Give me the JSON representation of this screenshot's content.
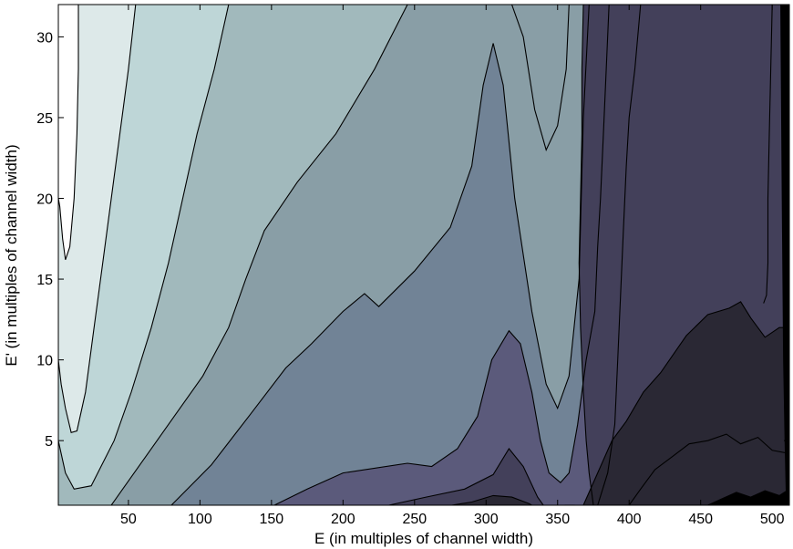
{
  "chart_data": {
    "type": "contour",
    "title": "",
    "xlabel": "E (in multiples of channel width)",
    "ylabel": "E' (in multiples of channel width)",
    "xlim": [
      1,
      512
    ],
    "ylim": [
      1,
      32
    ],
    "xticks": [
      50,
      100,
      150,
      200,
      250,
      300,
      350,
      400,
      450,
      500
    ],
    "yticks": [
      5,
      10,
      15,
      20,
      25,
      30
    ],
    "grid": false,
    "legend": "none",
    "fill_colors": [
      "#ffffff",
      "#dde9e9",
      "#bed6d7",
      "#a1b9bc",
      "#899ea6",
      "#718396",
      "#5b5a7b",
      "#43405a",
      "#2a2834",
      "#000000"
    ],
    "boundaries": [
      {
        "level": 1,
        "points": [
          [
            15,
            32
          ],
          [
            15,
            28
          ],
          [
            14,
            24
          ],
          [
            12,
            20
          ],
          [
            9,
            17
          ],
          [
            6,
            16.2
          ],
          [
            4,
            17.5
          ],
          [
            2,
            19.5
          ],
          [
            1,
            20
          ]
        ]
      },
      {
        "level": 2,
        "points": [
          [
            55,
            32
          ],
          [
            50,
            28
          ],
          [
            44,
            24
          ],
          [
            38,
            20
          ],
          [
            32,
            16
          ],
          [
            26,
            12
          ],
          [
            20,
            8
          ],
          [
            14,
            5.6
          ],
          [
            10,
            5.5
          ],
          [
            6,
            7
          ],
          [
            3,
            8.5
          ],
          [
            1,
            10
          ]
        ]
      },
      {
        "level": 3,
        "points": [
          [
            120,
            32
          ],
          [
            110,
            28
          ],
          [
            98,
            24
          ],
          [
            88,
            20
          ],
          [
            78,
            16
          ],
          [
            66,
            12
          ],
          [
            52,
            8
          ],
          [
            40,
            5
          ],
          [
            24,
            2.2
          ],
          [
            12,
            2
          ],
          [
            6,
            3
          ],
          [
            1,
            5
          ]
        ]
      },
      {
        "level": 4,
        "points": [
          [
            245,
            32
          ],
          [
            222,
            28
          ],
          [
            195,
            24
          ],
          [
            168,
            21
          ],
          [
            145,
            18
          ],
          [
            132,
            15
          ],
          [
            120,
            12
          ],
          [
            102,
            9
          ],
          [
            82,
            6.5
          ],
          [
            62,
            4
          ],
          [
            46,
            2
          ],
          [
            38,
            1
          ]
        ]
      },
      {
        "level": 5,
        "points": [
          [
            1,
            1
          ],
          [
            80,
            1
          ],
          [
            108,
            3.5
          ],
          [
            135,
            6.6
          ],
          [
            160,
            9.5
          ],
          [
            178,
            11
          ],
          [
            200,
            13
          ],
          [
            215,
            14.1
          ],
          [
            225,
            13.3
          ],
          [
            250,
            15.5
          ],
          [
            275,
            18.2
          ],
          [
            290,
            22
          ],
          [
            298,
            27
          ],
          [
            305,
            29.6
          ],
          [
            312,
            27
          ],
          [
            320,
            20
          ],
          [
            332,
            13
          ],
          [
            342,
            8.5
          ],
          [
            350,
            7
          ],
          [
            358,
            9
          ],
          [
            365,
            15
          ],
          [
            368,
            25
          ],
          [
            372,
            32
          ]
        ]
      },
      {
        "level": 6,
        "points": [
          [
            318,
            32
          ],
          [
            326,
            30
          ],
          [
            334,
            25.5
          ],
          [
            342,
            23
          ],
          [
            350,
            24.5
          ],
          [
            356,
            28
          ],
          [
            358,
            32
          ]
        ]
      },
      {
        "level": 7,
        "points": [
          [
            152,
            1
          ],
          [
            175,
            2
          ],
          [
            200,
            3
          ],
          [
            245,
            3.6
          ],
          [
            262,
            3.4
          ],
          [
            280,
            4.5
          ],
          [
            294,
            6.5
          ],
          [
            304,
            10
          ],
          [
            316,
            11.8
          ],
          [
            324,
            11
          ],
          [
            332,
            8
          ],
          [
            338,
            5
          ],
          [
            344,
            3
          ],
          [
            352,
            2.4
          ],
          [
            358,
            3
          ],
          [
            364,
            6
          ],
          [
            370,
            10
          ],
          [
            376,
            13
          ],
          [
            378,
            17
          ],
          [
            380,
            20
          ],
          [
            382,
            24
          ],
          [
            384,
            28
          ],
          [
            386,
            32
          ]
        ]
      },
      {
        "level": 8,
        "points": [
          [
            232,
            1
          ],
          [
            258,
            1.5
          ],
          [
            285,
            2
          ],
          [
            305,
            2.9
          ],
          [
            316,
            4.5
          ],
          [
            326,
            3.4
          ],
          [
            336,
            1.5
          ],
          [
            340,
            1
          ]
        ]
      },
      {
        "level": 8,
        "points": [
          [
            375,
            1
          ],
          [
            372,
            3
          ],
          [
            370,
            5
          ],
          [
            368,
            8
          ],
          [
            366,
            12
          ],
          [
            365,
            16
          ],
          [
            366,
            20
          ],
          [
            367,
            24
          ],
          [
            367,
            28
          ],
          [
            368,
            32
          ]
        ]
      },
      {
        "level": 9,
        "points": [
          [
            276,
            1
          ],
          [
            290,
            1.2
          ],
          [
            305,
            1.6
          ],
          [
            318,
            1.5
          ],
          [
            330,
            1.1
          ],
          [
            332,
            1
          ]
        ]
      },
      {
        "level": 9,
        "points": [
          [
            355,
            1
          ],
          [
            362,
            1
          ]
        ]
      },
      {
        "level": 9,
        "points": [
          [
            400,
            1
          ],
          [
            408,
            2
          ],
          [
            418,
            3.2
          ],
          [
            430,
            4
          ],
          [
            442,
            4.8
          ],
          [
            455,
            5
          ],
          [
            468,
            5.4
          ],
          [
            478,
            4.8
          ],
          [
            490,
            5.2
          ],
          [
            500,
            4.4
          ],
          [
            512,
            4.2
          ]
        ]
      },
      {
        "level": 8,
        "points": [
          [
            368,
            1
          ],
          [
            378,
            3
          ],
          [
            388,
            5
          ],
          [
            398,
            6.2
          ],
          [
            410,
            8
          ],
          [
            422,
            9.2
          ],
          [
            440,
            11.5
          ],
          [
            455,
            12.8
          ],
          [
            470,
            13.2
          ],
          [
            478,
            13.6
          ],
          [
            485,
            12.6
          ],
          [
            495,
            11.4
          ],
          [
            505,
            12
          ],
          [
            512,
            12
          ]
        ]
      },
      {
        "level": 7,
        "points": [
          [
            408,
            32
          ],
          [
            404,
            28
          ],
          [
            400,
            25
          ],
          [
            398,
            22
          ],
          [
            396,
            18
          ],
          [
            394,
            14
          ],
          [
            392,
            10
          ],
          [
            390,
            6
          ],
          [
            385,
            3
          ],
          [
            378,
            1
          ]
        ]
      },
      {
        "level": 8,
        "points": [
          [
            500,
            32
          ],
          [
            499,
            28
          ],
          [
            498,
            24
          ],
          [
            497,
            20
          ],
          [
            497,
            16
          ],
          [
            496,
            14
          ],
          [
            494,
            13.5
          ]
        ]
      },
      {
        "level": 10,
        "points": [
          [
            455,
            1
          ],
          [
            465,
            1.4
          ],
          [
            475,
            1.8
          ],
          [
            485,
            1.5
          ],
          [
            495,
            1.9
          ],
          [
            505,
            1.6
          ],
          [
            512,
            2
          ]
        ]
      },
      {
        "level": 10,
        "points": [
          [
            506,
            32
          ],
          [
            507,
            20
          ],
          [
            508,
            10
          ],
          [
            509,
            5
          ],
          [
            510,
            1
          ]
        ]
      }
    ]
  }
}
